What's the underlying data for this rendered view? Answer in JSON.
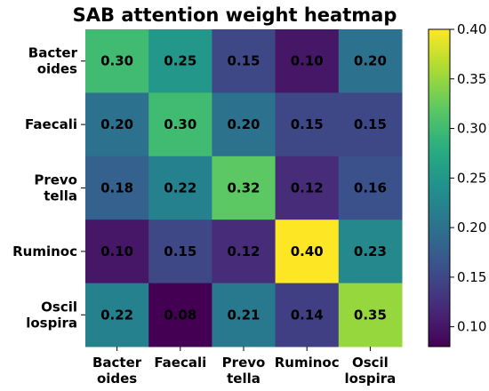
{
  "chart_data": {
    "type": "heatmap",
    "title": "SAB attention weight heatmap",
    "row_labels": [
      [
        "Bacter",
        "oides"
      ],
      [
        "Faecali"
      ],
      [
        "Prevo",
        "tella"
      ],
      [
        "Ruminoc"
      ],
      [
        "Oscil",
        "lospira"
      ]
    ],
    "col_labels": [
      [
        "Bacter",
        "oides"
      ],
      [
        "Faecali"
      ],
      [
        "Prevo",
        "tella"
      ],
      [
        "Ruminoc"
      ],
      [
        "Oscil",
        "lospira"
      ]
    ],
    "values": [
      [
        0.3,
        0.25,
        0.15,
        0.1,
        0.2
      ],
      [
        0.2,
        0.3,
        0.2,
        0.15,
        0.15
      ],
      [
        0.18,
        0.22,
        0.32,
        0.12,
        0.16
      ],
      [
        0.1,
        0.15,
        0.12,
        0.4,
        0.23
      ],
      [
        0.22,
        0.08,
        0.21,
        0.14,
        0.35
      ]
    ],
    "value_labels": [
      [
        "0.30",
        "0.25",
        "0.15",
        "0.10",
        "0.20"
      ],
      [
        "0.20",
        "0.30",
        "0.20",
        "0.15",
        "0.15"
      ],
      [
        "0.18",
        "0.22",
        "0.32",
        "0.12",
        "0.16"
      ],
      [
        "0.10",
        "0.15",
        "0.12",
        "0.40",
        "0.23"
      ],
      [
        "0.22",
        "0.08",
        "0.21",
        "0.14",
        "0.35"
      ]
    ],
    "colormap": "viridis",
    "vmin": 0.08,
    "vmax": 0.4,
    "colorbar_ticks": [
      "0.10",
      "0.15",
      "0.20",
      "0.25",
      "0.30",
      "0.35",
      "0.40"
    ],
    "legend_placement": "right"
  }
}
